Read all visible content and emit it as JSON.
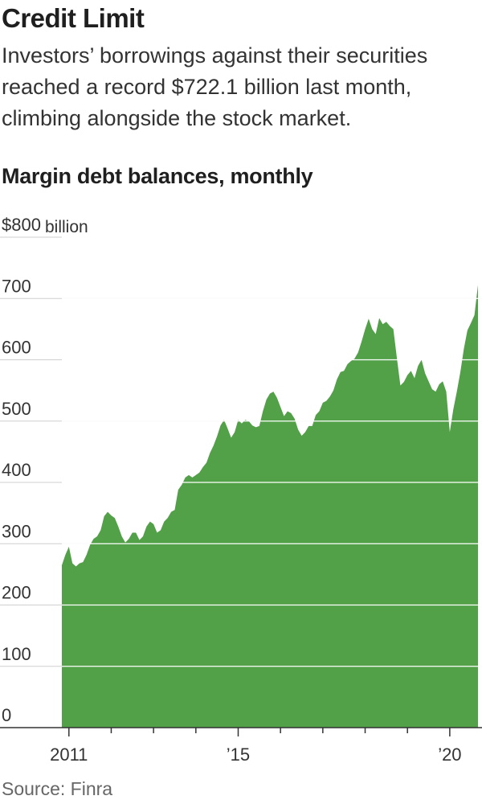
{
  "header": {
    "title": "Credit Limit",
    "subtitle": "Investors’ borrowings against their securities reached a record $722.1 billion last month, climbing alongside the stock market."
  },
  "chart_data": {
    "type": "area",
    "title": "Margin debt balances, monthly",
    "y_unit_label": "billion",
    "color": "#52a048",
    "x_start": "2010-01",
    "ylim": [
      0,
      800
    ],
    "yticks": [
      {
        "value": 800,
        "label": "$800"
      },
      {
        "value": 700,
        "label": "700"
      },
      {
        "value": 600,
        "label": "600"
      },
      {
        "value": 500,
        "label": "500"
      },
      {
        "value": 400,
        "label": "400"
      },
      {
        "value": 300,
        "label": "300"
      },
      {
        "value": 200,
        "label": "200"
      },
      {
        "value": 100,
        "label": "100"
      },
      {
        "value": 0,
        "label": "0"
      }
    ],
    "xticks": [
      {
        "label": "2011",
        "year": 2011
      },
      {
        "label": "’15",
        "year": 2015
      },
      {
        "label": "’20",
        "year": 2020
      }
    ],
    "values": [
      265,
      282,
      295,
      268,
      263,
      268,
      270,
      282,
      298,
      308,
      312,
      322,
      345,
      352,
      346,
      342,
      328,
      312,
      302,
      308,
      318,
      318,
      306,
      312,
      328,
      336,
      332,
      318,
      322,
      336,
      342,
      352,
      355,
      388,
      396,
      408,
      412,
      408,
      412,
      416,
      425,
      432,
      448,
      460,
      475,
      493,
      502,
      488,
      473,
      482,
      502,
      496,
      502,
      500,
      493,
      490,
      492,
      516,
      535,
      545,
      548,
      538,
      523,
      508,
      516,
      513,
      504,
      486,
      476,
      482,
      492,
      492,
      510,
      516,
      530,
      533,
      540,
      550,
      568,
      580,
      582,
      593,
      598,
      602,
      612,
      630,
      650,
      667,
      650,
      642,
      668,
      658,
      662,
      655,
      650,
      603,
      558,
      564,
      575,
      582,
      570,
      590,
      600,
      578,
      565,
      552,
      548,
      560,
      565,
      548,
      482,
      519,
      548,
      580,
      618,
      648,
      660,
      673,
      722
    ]
  },
  "source": "Source: Finra"
}
